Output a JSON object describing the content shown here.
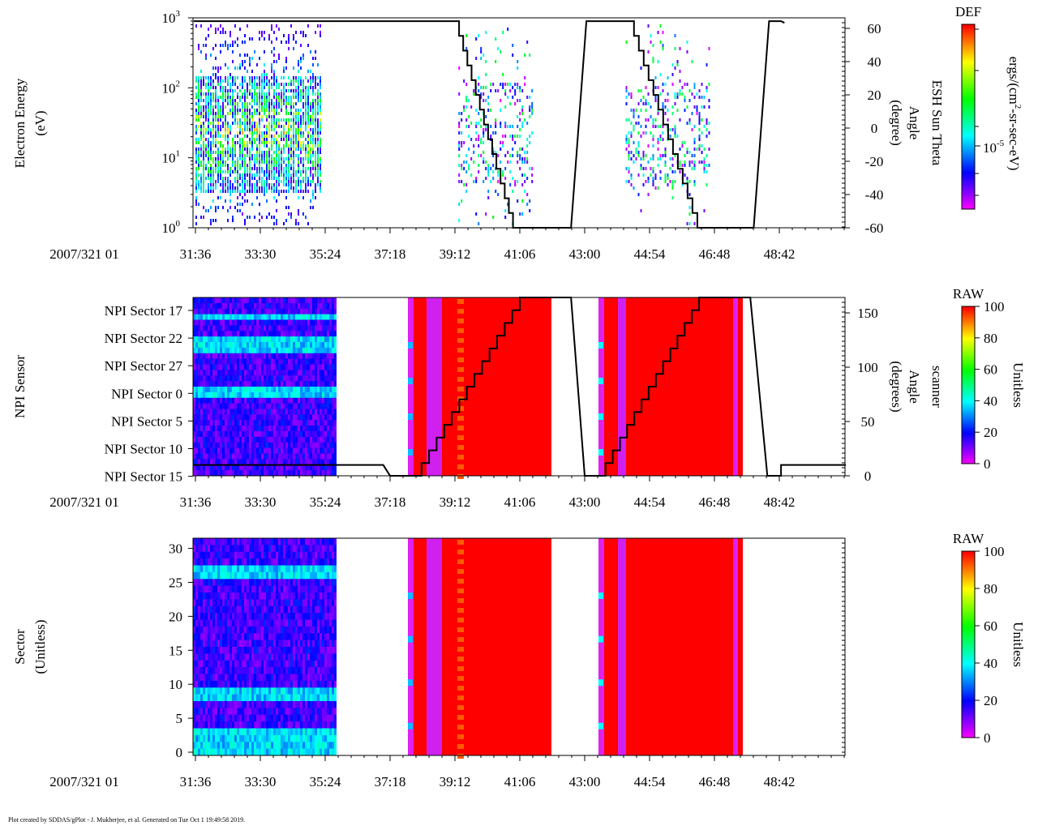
{
  "footer": "Plot created by SDDAS/gPlot - J. Mukherjee, et al.  Generated on Tue Oct 1 19:49:58 2019.",
  "chart_data": [
    {
      "type": "heatmap",
      "ylabel": "Electron Energy",
      "ylabel2": "(eV)",
      "yscale": "log",
      "ylim": [
        1,
        1000
      ],
      "yticks": [
        "10",
        "10",
        "10",
        "10"
      ],
      "ytick_exp": [
        "0",
        "1",
        "2",
        "3"
      ],
      "right_axis": {
        "label1": "ESH Sun Theta",
        "label2": "Angle",
        "label3": "(degree)",
        "ticks": [
          "60",
          "40",
          "20",
          "0",
          "-20",
          "-40",
          "-60"
        ],
        "ylim": [
          -60,
          66
        ]
      },
      "colorbar": {
        "title": "DEF",
        "label": "ergs/(cm",
        "label_sup": "2",
        "label_rest": "-sr-sec-eV)",
        "tick": "10",
        "tick_exp": "-5"
      },
      "date_label": "2007/321 01",
      "xticks": [
        "31:36",
        "33:30",
        "35:24",
        "37:18",
        "39:12",
        "41:06",
        "43:00",
        "44:54",
        "46:48",
        "48:42"
      ],
      "data_segments_min": [
        [
          31.6,
          35.3
        ],
        [
          39.3,
          41.5
        ],
        [
          44.2,
          46.65
        ]
      ],
      "angle_line": [
        [
          31.55,
          64
        ],
        [
          39.2,
          64
        ],
        [
          40.9,
          -60
        ],
        [
          42.6,
          -60
        ],
        [
          43.05,
          64
        ],
        [
          44.3,
          64
        ],
        [
          46.3,
          -60
        ],
        [
          47.95,
          -60
        ],
        [
          48.4,
          64
        ],
        [
          48.75,
          64
        ],
        [
          48.85,
          63
        ]
      ]
    },
    {
      "type": "heatmap",
      "ylabel": "NPI Sensor",
      "yticks": [
        "NPI Sector 17",
        "NPI Sector 22",
        "NPI Sector 27",
        "NPI Sector 0",
        "NPI Sector 5",
        "NPI Sector 10",
        "NPI Sector 15"
      ],
      "right_axis": {
        "label1": "scanner",
        "label2": "Angle",
        "label3": "(degrees)",
        "ticks": [
          "150",
          "100",
          "50",
          "0"
        ],
        "ylim": [
          0,
          165
        ]
      },
      "colorbar": {
        "title": "RAW",
        "label": "Unitless",
        "ticks": [
          "100",
          "80",
          "60",
          "40",
          "20",
          "0"
        ]
      },
      "date_label": "2007/321 01",
      "xticks": [
        "31:36",
        "33:30",
        "35:24",
        "37:18",
        "39:12",
        "41:06",
        "43:00",
        "44:54",
        "46:48",
        "48:42"
      ],
      "angle_line": [
        [
          31.55,
          10
        ],
        [
          37.1,
          10
        ],
        [
          37.3,
          0
        ],
        [
          38.0,
          0
        ],
        [
          41.1,
          165
        ],
        [
          42.6,
          165
        ],
        [
          43.0,
          0
        ],
        [
          43.4,
          0
        ],
        [
          46.35,
          165
        ],
        [
          47.85,
          165
        ],
        [
          48.35,
          0
        ],
        [
          48.75,
          0
        ],
        [
          48.75,
          10
        ],
        [
          50.65,
          10
        ]
      ]
    },
    {
      "type": "heatmap",
      "ylabel": "Sector",
      "ylabel2": "(Unitless)",
      "yticks": [
        "30",
        "25",
        "20",
        "15",
        "10",
        "5",
        "0"
      ],
      "ylim": [
        0,
        31.5
      ],
      "colorbar": {
        "title": "RAW",
        "label": "Unitless",
        "ticks": [
          "100",
          "80",
          "60",
          "40",
          "20",
          "0"
        ]
      },
      "date_label": "2007/321 01",
      "xticks": [
        "31:36",
        "33:30",
        "35:24",
        "37:18",
        "39:12",
        "41:06",
        "43:00",
        "44:54",
        "46:48",
        "48:42"
      ]
    }
  ]
}
